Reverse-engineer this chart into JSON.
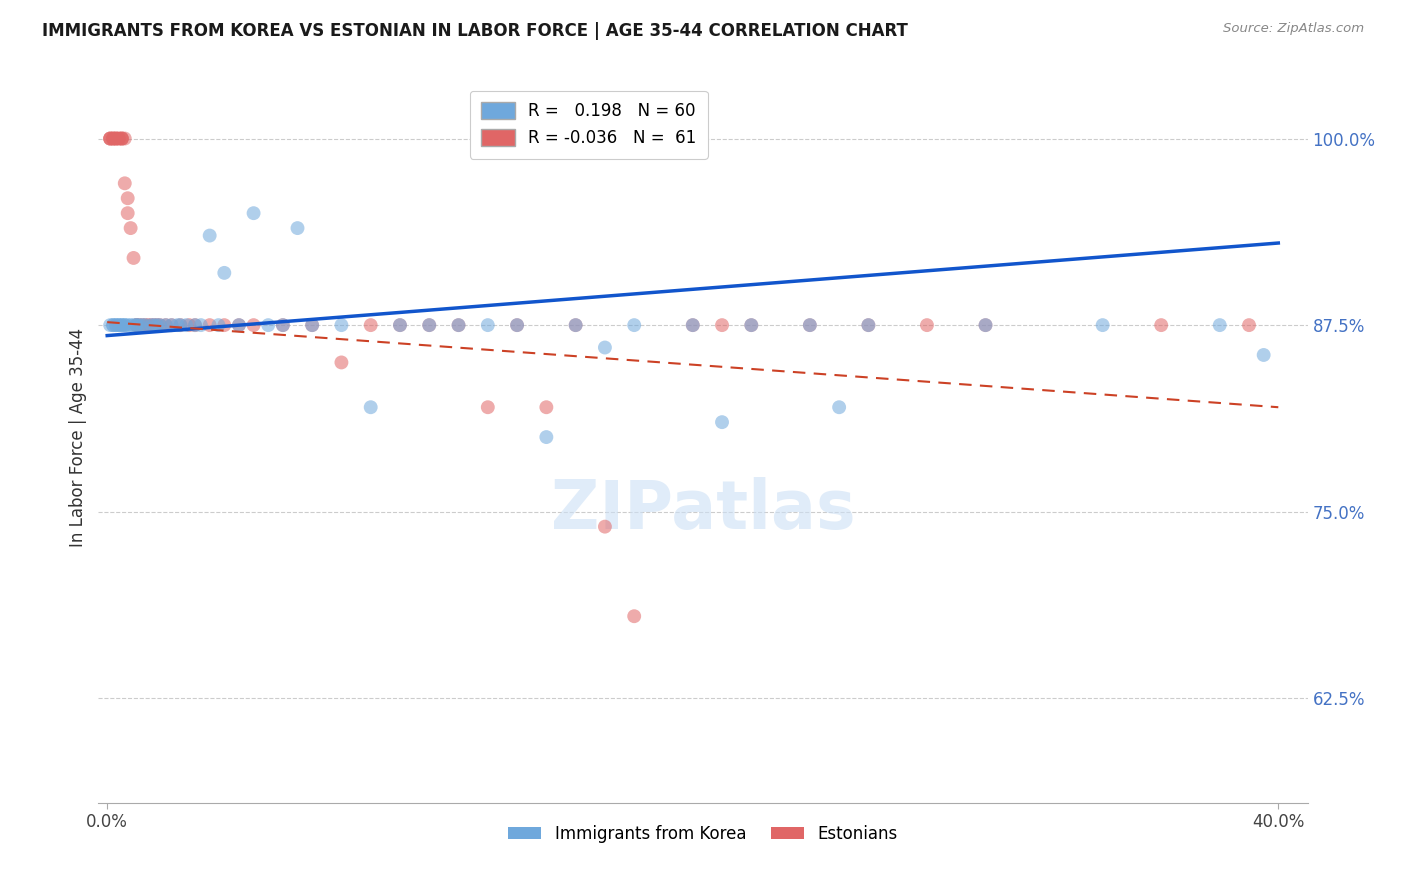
{
  "title": "IMMIGRANTS FROM KOREA VS ESTONIAN IN LABOR FORCE | AGE 35-44 CORRELATION CHART",
  "source": "Source: ZipAtlas.com",
  "ylabel": "In Labor Force | Age 35-44",
  "y_ticks": [
    0.625,
    0.75,
    0.875,
    1.0
  ],
  "y_tick_labels": [
    "62.5%",
    "75.0%",
    "87.5%",
    "100.0%"
  ],
  "xlim": [
    -0.003,
    0.41
  ],
  "ylim": [
    0.555,
    1.045
  ],
  "korea_R": 0.198,
  "korea_N": 60,
  "estonian_R": -0.036,
  "estonian_N": 61,
  "korea_color": "#6fa8dc",
  "estonian_color": "#e06666",
  "korea_line_color": "#1155cc",
  "estonian_line_color": "#cc4125",
  "watermark": "ZIPatlas",
  "korea_line_x0": 0.0,
  "korea_line_y0": 0.868,
  "korea_line_x1": 0.4,
  "korea_line_y1": 0.93,
  "estonian_line_x0": 0.0,
  "estonian_line_y0": 0.877,
  "estonian_line_x1": 0.4,
  "estonian_line_y1": 0.82,
  "korea_scatter_x": [
    0.001,
    0.002,
    0.002,
    0.003,
    0.003,
    0.004,
    0.004,
    0.005,
    0.005,
    0.006,
    0.006,
    0.007,
    0.008,
    0.009,
    0.01,
    0.01,
    0.011,
    0.012,
    0.013,
    0.015,
    0.016,
    0.017,
    0.018,
    0.02,
    0.022,
    0.024,
    0.025,
    0.027,
    0.03,
    0.032,
    0.035,
    0.038,
    0.04,
    0.045,
    0.05,
    0.055,
    0.06,
    0.065,
    0.07,
    0.08,
    0.09,
    0.1,
    0.11,
    0.12,
    0.13,
    0.14,
    0.15,
    0.16,
    0.17,
    0.18,
    0.2,
    0.21,
    0.22,
    0.24,
    0.25,
    0.26,
    0.3,
    0.34,
    0.38,
    0.395
  ],
  "korea_scatter_y": [
    0.875,
    0.875,
    0.875,
    0.875,
    0.875,
    0.875,
    0.875,
    0.875,
    0.875,
    0.875,
    0.875,
    0.875,
    0.875,
    0.875,
    0.875,
    0.875,
    0.875,
    0.875,
    0.875,
    0.875,
    0.875,
    0.875,
    0.875,
    0.875,
    0.875,
    0.875,
    0.875,
    0.875,
    0.875,
    0.875,
    0.935,
    0.875,
    0.91,
    0.875,
    0.95,
    0.875,
    0.875,
    0.94,
    0.875,
    0.875,
    0.82,
    0.875,
    0.875,
    0.875,
    0.875,
    0.875,
    0.8,
    0.875,
    0.86,
    0.875,
    0.875,
    0.81,
    0.875,
    0.875,
    0.82,
    0.875,
    0.875,
    0.875,
    0.875,
    0.855
  ],
  "estonian_scatter_x": [
    0.001,
    0.001,
    0.001,
    0.002,
    0.002,
    0.002,
    0.003,
    0.003,
    0.003,
    0.004,
    0.004,
    0.005,
    0.005,
    0.005,
    0.006,
    0.006,
    0.007,
    0.007,
    0.008,
    0.009,
    0.01,
    0.01,
    0.011,
    0.012,
    0.013,
    0.014,
    0.015,
    0.016,
    0.017,
    0.018,
    0.02,
    0.022,
    0.025,
    0.028,
    0.03,
    0.035,
    0.04,
    0.045,
    0.05,
    0.06,
    0.07,
    0.08,
    0.09,
    0.1,
    0.11,
    0.12,
    0.13,
    0.14,
    0.15,
    0.16,
    0.17,
    0.18,
    0.2,
    0.21,
    0.22,
    0.24,
    0.26,
    0.28,
    0.3,
    0.36,
    0.39
  ],
  "estonian_scatter_y": [
    1.0,
    1.0,
    1.0,
    1.0,
    1.0,
    1.0,
    1.0,
    1.0,
    1.0,
    1.0,
    1.0,
    1.0,
    1.0,
    1.0,
    1.0,
    0.97,
    0.96,
    0.95,
    0.94,
    0.92,
    0.875,
    0.875,
    0.875,
    0.875,
    0.875,
    0.875,
    0.875,
    0.875,
    0.875,
    0.875,
    0.875,
    0.875,
    0.875,
    0.875,
    0.875,
    0.875,
    0.875,
    0.875,
    0.875,
    0.875,
    0.875,
    0.85,
    0.875,
    0.875,
    0.875,
    0.875,
    0.82,
    0.875,
    0.82,
    0.875,
    0.74,
    0.68,
    0.875,
    0.875,
    0.875,
    0.875,
    0.875,
    0.875,
    0.875,
    0.875,
    0.875
  ]
}
